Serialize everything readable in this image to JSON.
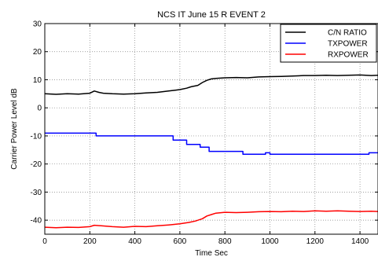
{
  "chart_data": {
    "type": "line",
    "title": "NCS IT June 15 R EVENT 2",
    "xlabel": "Time Sec",
    "ylabel": "Carrier Power Level dB",
    "xlim": [
      0,
      1480
    ],
    "ylim": [
      -45,
      30
    ],
    "xticks": [
      0,
      200,
      400,
      600,
      800,
      1000,
      1200,
      1400
    ],
    "yticks": [
      -40,
      -30,
      -20,
      -10,
      0,
      10,
      20,
      30
    ],
    "grid": true,
    "legend_position": "top-right",
    "series": [
      {
        "name": "C/N RATIO",
        "color": "#000000",
        "points": [
          [
            0,
            5.0
          ],
          [
            50,
            4.8
          ],
          [
            100,
            5.0
          ],
          [
            150,
            4.9
          ],
          [
            200,
            5.2
          ],
          [
            220,
            6.0
          ],
          [
            240,
            5.5
          ],
          [
            260,
            5.2
          ],
          [
            300,
            5.0
          ],
          [
            350,
            4.9
          ],
          [
            400,
            5.0
          ],
          [
            450,
            5.3
          ],
          [
            500,
            5.5
          ],
          [
            550,
            6.0
          ],
          [
            580,
            6.3
          ],
          [
            600,
            6.5
          ],
          [
            630,
            7.0
          ],
          [
            650,
            7.5
          ],
          [
            680,
            8.0
          ],
          [
            700,
            9.0
          ],
          [
            720,
            9.8
          ],
          [
            740,
            10.3
          ],
          [
            760,
            10.5
          ],
          [
            800,
            10.7
          ],
          [
            850,
            10.8
          ],
          [
            900,
            10.7
          ],
          [
            950,
            11.0
          ],
          [
            1000,
            11.1
          ],
          [
            1050,
            11.2
          ],
          [
            1100,
            11.3
          ],
          [
            1150,
            11.5
          ],
          [
            1200,
            11.5
          ],
          [
            1250,
            11.6
          ],
          [
            1300,
            11.5
          ],
          [
            1350,
            11.6
          ],
          [
            1400,
            11.7
          ],
          [
            1450,
            11.5
          ],
          [
            1480,
            11.6
          ]
        ]
      },
      {
        "name": "TXPOWER",
        "color": "#0000ff",
        "points": [
          [
            0,
            -9
          ],
          [
            228,
            -9
          ],
          [
            228,
            -10
          ],
          [
            570,
            -10
          ],
          [
            570,
            -11.5
          ],
          [
            630,
            -11.5
          ],
          [
            630,
            -13
          ],
          [
            690,
            -13
          ],
          [
            690,
            -14
          ],
          [
            730,
            -14
          ],
          [
            730,
            -15.5
          ],
          [
            880,
            -15.5
          ],
          [
            880,
            -16.5
          ],
          [
            980,
            -16.5
          ],
          [
            980,
            -16
          ],
          [
            1000,
            -16
          ],
          [
            1000,
            -16.5
          ],
          [
            1440,
            -16.5
          ],
          [
            1440,
            -16
          ],
          [
            1480,
            -16
          ]
        ]
      },
      {
        "name": "RXPOWER",
        "color": "#ff0000",
        "points": [
          [
            0,
            -42.5
          ],
          [
            50,
            -42.7
          ],
          [
            100,
            -42.5
          ],
          [
            150,
            -42.6
          ],
          [
            200,
            -42.3
          ],
          [
            220,
            -41.8
          ],
          [
            250,
            -42.0
          ],
          [
            300,
            -42.3
          ],
          [
            350,
            -42.5
          ],
          [
            400,
            -42.2
          ],
          [
            450,
            -42.3
          ],
          [
            500,
            -42.0
          ],
          [
            550,
            -41.7
          ],
          [
            600,
            -41.3
          ],
          [
            640,
            -40.8
          ],
          [
            670,
            -40.3
          ],
          [
            700,
            -39.5
          ],
          [
            720,
            -38.5
          ],
          [
            740,
            -38.0
          ],
          [
            760,
            -37.5
          ],
          [
            800,
            -37.2
          ],
          [
            850,
            -37.3
          ],
          [
            900,
            -37.2
          ],
          [
            950,
            -37.0
          ],
          [
            1000,
            -36.9
          ],
          [
            1050,
            -37.0
          ],
          [
            1100,
            -36.8
          ],
          [
            1150,
            -36.9
          ],
          [
            1200,
            -36.7
          ],
          [
            1250,
            -36.8
          ],
          [
            1300,
            -36.7
          ],
          [
            1350,
            -36.8
          ],
          [
            1400,
            -36.9
          ],
          [
            1450,
            -36.8
          ],
          [
            1480,
            -36.9
          ]
        ]
      }
    ]
  }
}
